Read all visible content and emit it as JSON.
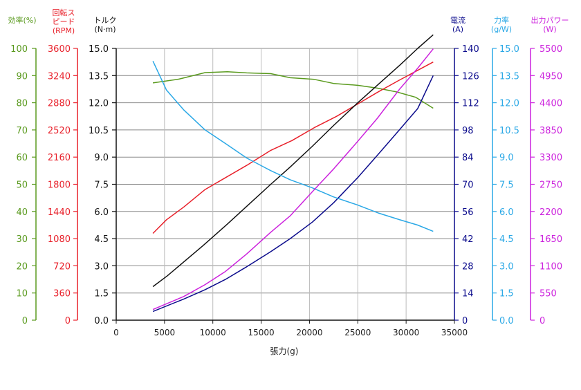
{
  "chart_data": {
    "type": "line",
    "xlabel": "張力(g)",
    "xticks": [
      0,
      5000,
      10000,
      15000,
      20000,
      25000,
      30000,
      35000
    ],
    "xlim": [
      0,
      35000
    ],
    "grid": true,
    "axes": [
      {
        "id": "eff",
        "title": [
          "効率(%)"
        ],
        "color": "#5a9a1e",
        "ticks": [
          0,
          10,
          20,
          30,
          40,
          50,
          60,
          70,
          80,
          90,
          100
        ],
        "labels": [
          "0",
          "10",
          "20",
          "30",
          "40",
          "50",
          "60",
          "70",
          "80",
          "90",
          "100"
        ],
        "max": 100
      },
      {
        "id": "rpm",
        "title": [
          "回転ス",
          "ピード",
          "(RPM)"
        ],
        "color": "#e8202a",
        "ticks": [
          0,
          360,
          720,
          1080,
          1440,
          1800,
          2160,
          2520,
          2880,
          3240,
          3600
        ],
        "labels": [
          "0",
          "360",
          "720",
          "1080",
          "1440",
          "1800",
          "2160",
          "2520",
          "2880",
          "3240",
          "3600"
        ],
        "max": 3600
      },
      {
        "id": "torque",
        "title": [
          "トルク",
          "(N·m)"
        ],
        "color": "#111111",
        "ticks": [
          0,
          1.5,
          3,
          4.5,
          6,
          7.5,
          9,
          10.5,
          12,
          13.5,
          15
        ],
        "labels": [
          "0.0",
          "1.5",
          "3.0",
          "4.5",
          "6.0",
          "7.5",
          "9.0",
          "10.5",
          "12.0",
          "13.5",
          "15.0"
        ],
        "max": 15
      },
      {
        "id": "current",
        "title": [
          "電流",
          "(A)"
        ],
        "color": "#0b0b8c",
        "ticks": [
          0,
          14,
          28,
          42,
          56,
          70,
          84,
          98,
          112,
          126,
          140
        ],
        "labels": [
          "0",
          "14",
          "28",
          "42",
          "56",
          "70",
          "84",
          "98",
          "112",
          "126",
          "140"
        ],
        "max": 140
      },
      {
        "id": "force",
        "title": [
          "力率",
          "(g/W)"
        ],
        "color": "#2aa8e6",
        "ticks": [
          0,
          1.5,
          3,
          4.5,
          6,
          7.5,
          9,
          10.5,
          12,
          13.5,
          15
        ],
        "labels": [
          "0.0",
          "1.5",
          "3.0",
          "4.5",
          "6.0",
          "7.5",
          "9.0",
          "10.5",
          "12.0",
          "13.5",
          "15.0"
        ],
        "max": 15
      },
      {
        "id": "power",
        "title": [
          "出力パワー",
          "(W)"
        ],
        "color": "#cc22dd",
        "ticks": [
          0,
          550,
          1100,
          1650,
          2200,
          2750,
          3300,
          3850,
          4400,
          4950,
          5500
        ],
        "labels": [
          "0",
          "550",
          "1100",
          "1650",
          "2200",
          "2750",
          "3300",
          "3850",
          "4400",
          "4950",
          "5500"
        ],
        "max": 5500
      }
    ],
    "series": [
      {
        "axis": "eff",
        "color": "#5a9a1e",
        "x": [
          3800,
          6500,
          9200,
          11500,
          13500,
          16000,
          18000,
          20500,
          22500,
          25000,
          27000,
          29000,
          31000,
          32800
        ],
        "y": [
          87.3,
          88.7,
          91.1,
          91.4,
          91.0,
          90.7,
          89.2,
          88.6,
          87.1,
          86.4,
          85.4,
          84.0,
          82.0,
          78.0
        ]
      },
      {
        "axis": "rpm",
        "color": "#e8202a",
        "x": [
          3800,
          5200,
          7000,
          9200,
          11200,
          13500,
          16000,
          18200,
          20500,
          22800,
          25200,
          27200,
          29300,
          31200,
          32800
        ],
        "y": [
          1150,
          1330,
          1500,
          1730,
          1880,
          2050,
          2250,
          2380,
          2550,
          2700,
          2880,
          3030,
          3180,
          3310,
          3420
        ]
      },
      {
        "axis": "torque",
        "color": "#111111",
        "x": [
          3800,
          5300,
          9000,
          11500,
          13600,
          16000,
          18000,
          20300,
          22500,
          25000,
          27200,
          29400,
          31200,
          32800
        ],
        "y": [
          1.85,
          2.45,
          4.12,
          5.3,
          6.33,
          7.5,
          8.45,
          9.6,
          10.75,
          12.0,
          13.05,
          14.1,
          15.0,
          15.75
        ]
      },
      {
        "axis": "current",
        "color": "#0b0b8c",
        "x": [
          3800,
          7000,
          9200,
          11300,
          13500,
          16000,
          18000,
          20300,
          22500,
          25000,
          27000,
          29300,
          31200,
          32800
        ],
        "y": [
          4.5,
          10.9,
          15.7,
          21.0,
          27.5,
          35.3,
          42.0,
          50.5,
          60.5,
          73.5,
          84.8,
          98.0,
          109.0,
          126.0
        ]
      },
      {
        "axis": "force",
        "color": "#2aa8e6",
        "x": [
          3800,
          5200,
          7000,
          9200,
          11300,
          13500,
          16000,
          18000,
          20300,
          22500,
          25000,
          27200,
          29300,
          31200,
          32800
        ],
        "y": [
          14.3,
          12.7,
          11.6,
          10.5,
          9.75,
          8.95,
          8.25,
          7.75,
          7.3,
          6.8,
          6.35,
          5.9,
          5.55,
          5.25,
          4.9
        ]
      },
      {
        "axis": "power",
        "color": "#cc22dd",
        "x": [
          3800,
          7000,
          9200,
          11300,
          13500,
          16000,
          18000,
          20300,
          22500,
          25000,
          27000,
          29300,
          31200,
          32800
        ],
        "y": [
          215,
          480,
          720,
          985,
          1340,
          1780,
          2110,
          2600,
          3060,
          3620,
          4080,
          4670,
          5100,
          5490
        ]
      }
    ]
  }
}
